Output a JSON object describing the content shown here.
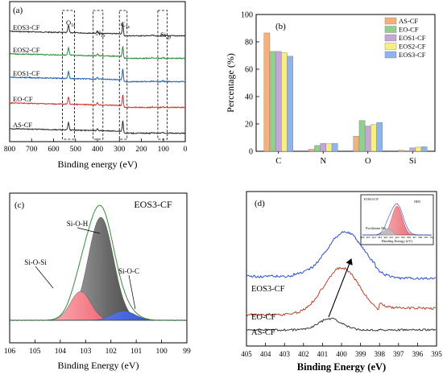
{
  "chart_data": [
    {
      "panel_label": "(a)",
      "type": "line",
      "xlabel": "Binding energy (eV)",
      "ylabel": "",
      "xlim": [
        800,
        0
      ],
      "x_reversed": true,
      "xticks": [
        800,
        700,
        600,
        500,
        400,
        300,
        200,
        100,
        0
      ],
      "series": [
        {
          "name": "EOS3-CF",
          "color": "#2b2b2b",
          "baseline": 5.0
        },
        {
          "name": "EOS2-CF",
          "color": "#2e8b3d",
          "baseline": 4.0
        },
        {
          "name": "EOS1-CF",
          "color": "#1f5fb4",
          "baseline": 3.0
        },
        {
          "name": "EO-CF",
          "color": "#d62f2f",
          "baseline": 2.0
        },
        {
          "name": "AS-CF",
          "color": "#2b2b2b",
          "baseline": 1.0
        }
      ],
      "peaks": [
        {
          "label": "O1s",
          "x": 532
        },
        {
          "label": "N1s",
          "x": 400
        },
        {
          "label": "C1s",
          "x": 284.6
        },
        {
          "label": "Si2p",
          "x": 102
        }
      ],
      "boxes": [
        [
          560,
          505
        ],
        [
          420,
          375
        ],
        [
          300,
          265
        ],
        [
          125,
          82
        ]
      ]
    },
    {
      "panel_label": "(b)",
      "type": "bar",
      "ylabel": "Percentage (%)",
      "ylim": [
        0,
        100
      ],
      "yticks": [
        0,
        20,
        40,
        60,
        80,
        100
      ],
      "categories": [
        "C",
        "N",
        "O",
        "Si"
      ],
      "legend": "top-right",
      "series": [
        {
          "name": "AS-CF",
          "color": "#f6b07c",
          "values": [
            86.5,
            1.5,
            11.0,
            0.8
          ]
        },
        {
          "name": "EO-CF",
          "color": "#8fd08f",
          "values": [
            73.0,
            4.2,
            22.5,
            0.4
          ]
        },
        {
          "name": "EOS1-CF",
          "color": "#c6a6d8",
          "values": [
            73.0,
            5.8,
            18.5,
            2.5
          ]
        },
        {
          "name": "EOS2-CF",
          "color": "#f7f07e",
          "values": [
            72.0,
            5.5,
            19.5,
            3.0
          ]
        },
        {
          "name": "EOS3-CF",
          "color": "#8fb3ec",
          "values": [
            69.5,
            5.8,
            21.0,
            3.3
          ]
        }
      ]
    },
    {
      "panel_label": "(c)",
      "type": "area",
      "title": "EOS3-CF",
      "xlabel": "Binding Energy (eV)",
      "xlim": [
        106,
        99
      ],
      "x_reversed": true,
      "xticks": [
        106,
        105,
        104,
        103,
        102,
        101,
        100,
        99
      ],
      "components": [
        {
          "name": "Si-O-H",
          "center": 102.4,
          "height": 10.0,
          "width": 0.5,
          "color": "#555555"
        },
        {
          "name": "Si-O-Si",
          "center": 103.2,
          "height": 2.8,
          "width": 0.4,
          "color": "#e8414d"
        },
        {
          "name": "Si-O-C",
          "center": 101.5,
          "height": 0.9,
          "width": 0.45,
          "color": "#3b5bdb"
        }
      ]
    },
    {
      "panel_label": "(d)",
      "type": "line",
      "xlabel": "Binding Energy (eV)",
      "xlim": [
        405,
        395
      ],
      "x_reversed": true,
      "xticks": [
        405,
        404,
        403,
        402,
        401,
        400,
        399,
        398,
        397,
        396,
        395
      ],
      "series": [
        {
          "name": "EOS3-CF",
          "color": "#2d50c8",
          "peak_center": 399.8,
          "peak_height": 5.0,
          "baseline": 9.0
        },
        {
          "name": "EO-CF",
          "color": "#b4462f",
          "peak_center": 400.0,
          "peak_height": 5.0,
          "baseline": 5.0
        },
        {
          "name": "AS-CF",
          "color": "#333333",
          "peak_center": 400.6,
          "peak_height": 1.8,
          "baseline": 1.0
        }
      ],
      "inset": {
        "title": "EOS3-CF",
        "xlabel": "Binding Energy (eV)",
        "peak_label": "NH3",
        "component_label": "Pyridinium Nitr",
        "xticks": [
          406,
          405,
          404,
          403,
          402,
          401,
          400,
          399,
          398,
          397,
          396,
          395,
          394
        ]
      }
    }
  ]
}
